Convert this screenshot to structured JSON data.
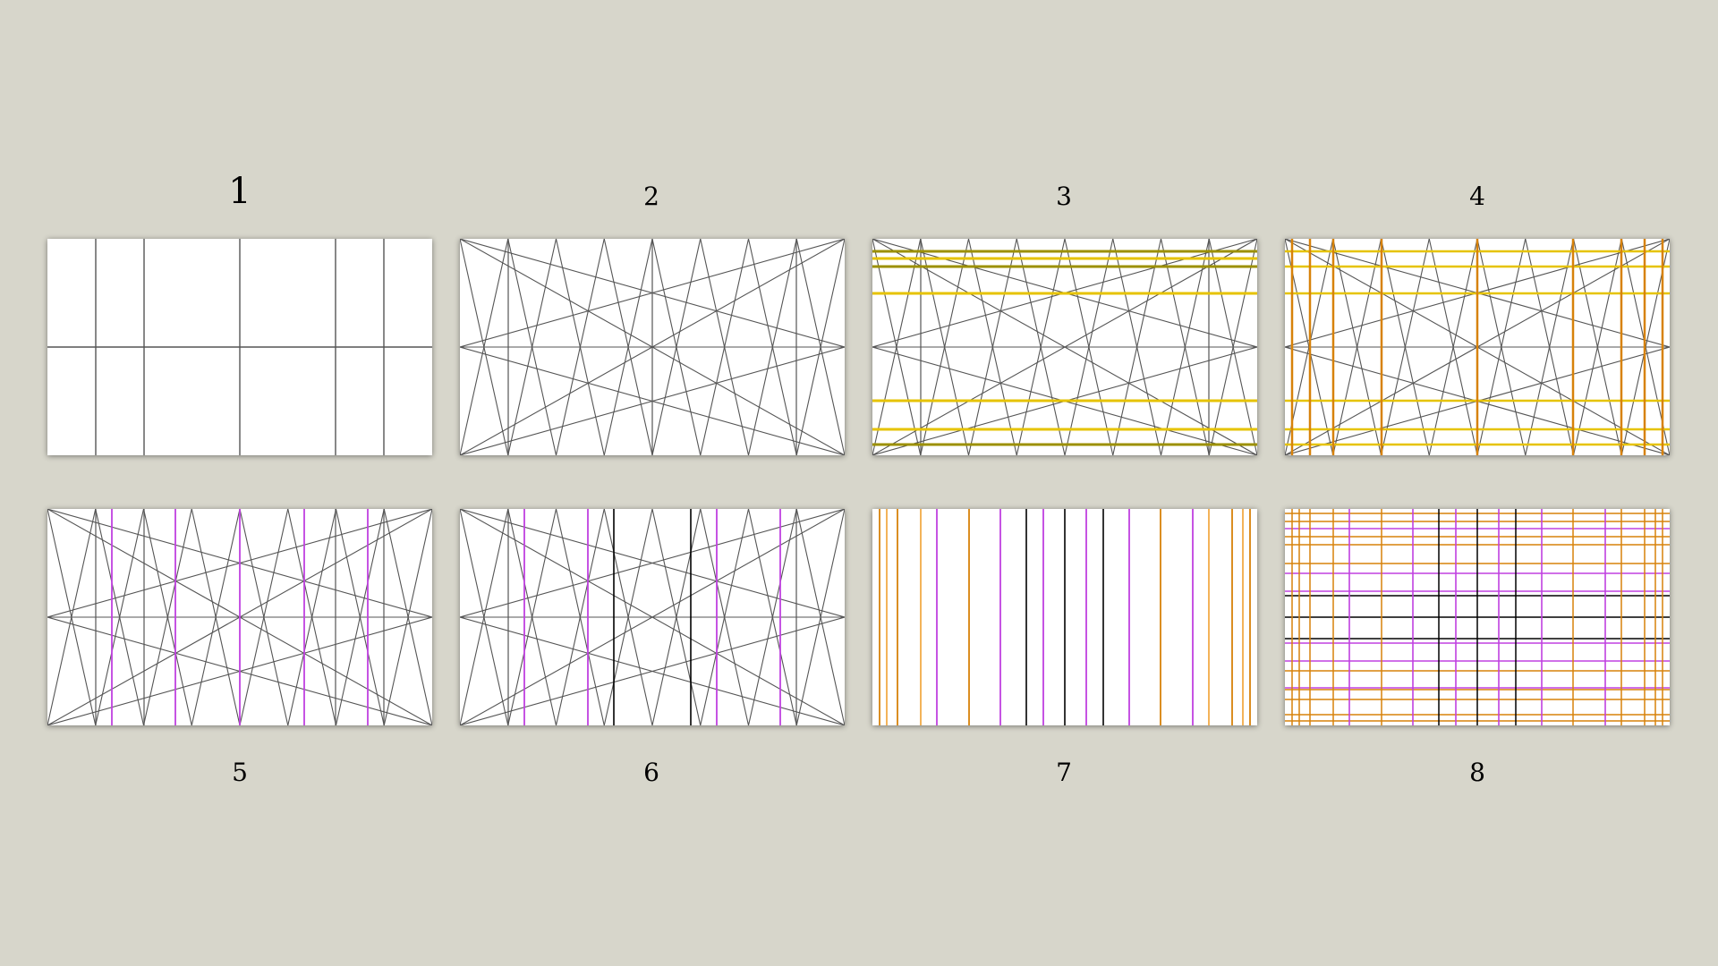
{
  "panels": [
    {
      "label": "1",
      "key": "p1"
    },
    {
      "label": "2",
      "key": "p2"
    },
    {
      "label": "3",
      "key": "p3"
    },
    {
      "label": "4",
      "key": "p4"
    },
    {
      "label": "5",
      "key": "p5"
    },
    {
      "label": "6",
      "key": "p6"
    },
    {
      "label": "7",
      "key": "p7"
    },
    {
      "label": "8",
      "key": "p8"
    }
  ],
  "colors": {
    "background": "#d7d6cb",
    "panel": "#ffffff",
    "construction": "#555555",
    "yellow": "#e6c300",
    "olive": "#9c9000",
    "orange": "#d7820a",
    "light_orange": "#f0a030",
    "violet": "#c040e0",
    "black": "#000000"
  }
}
